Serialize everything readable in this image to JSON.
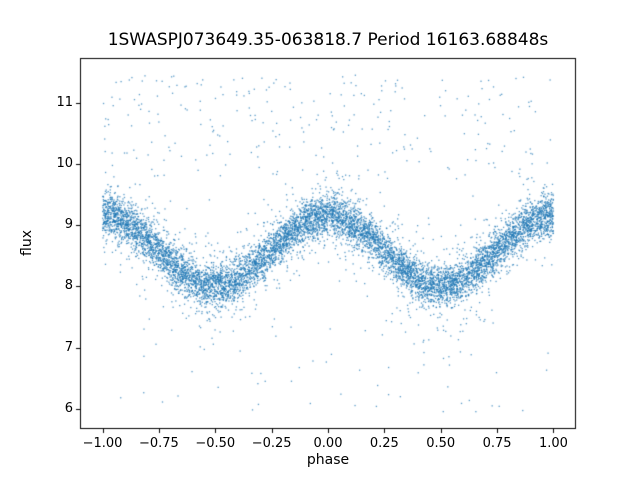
{
  "chart_data": {
    "type": "scatter",
    "title": "1SWASPJ073649.35-063818.7 Period 16163.68848s",
    "xlabel": "phase",
    "ylabel": "flux",
    "xlim": [
      -1.1,
      1.1
    ],
    "ylim": [
      5.67,
      11.73
    ],
    "x_ticks": [
      -1.0,
      -0.75,
      -0.5,
      -0.25,
      0.0,
      0.25,
      0.5,
      0.75,
      1.0
    ],
    "x_tick_labels": [
      "−1.00",
      "−0.75",
      "−0.50",
      "−0.25",
      "0.00",
      "0.25",
      "0.50",
      "0.75",
      "1.00"
    ],
    "y_ticks": [
      6,
      7,
      8,
      9,
      10,
      11
    ],
    "y_tick_labels": [
      "6",
      "7",
      "8",
      "9",
      "10",
      "11"
    ],
    "grid": false,
    "legend": null,
    "marker_color": "#1f77b4",
    "marker_alpha": 0.75,
    "marker_size_px": 1.3,
    "model": {
      "kind": "cosine_scatter",
      "formula": "flux = mean + amplitude*cos(2*pi*phase) + gaussian_noise",
      "mean": 8.58,
      "amplitude": 0.58,
      "noise_sigma": 0.17,
      "tail_fraction": 0.12,
      "tail_sigma": 0.42,
      "n_points": 9000,
      "phase_min": -1.0,
      "phase_max": 1.0,
      "outliers_high": {
        "n": 260,
        "flux_min": 9.75,
        "flux_max": 11.45
      },
      "outliers_low": {
        "n": 70,
        "flux_min": 5.95,
        "flux_max": 7.55
      },
      "seed": 42
    }
  }
}
